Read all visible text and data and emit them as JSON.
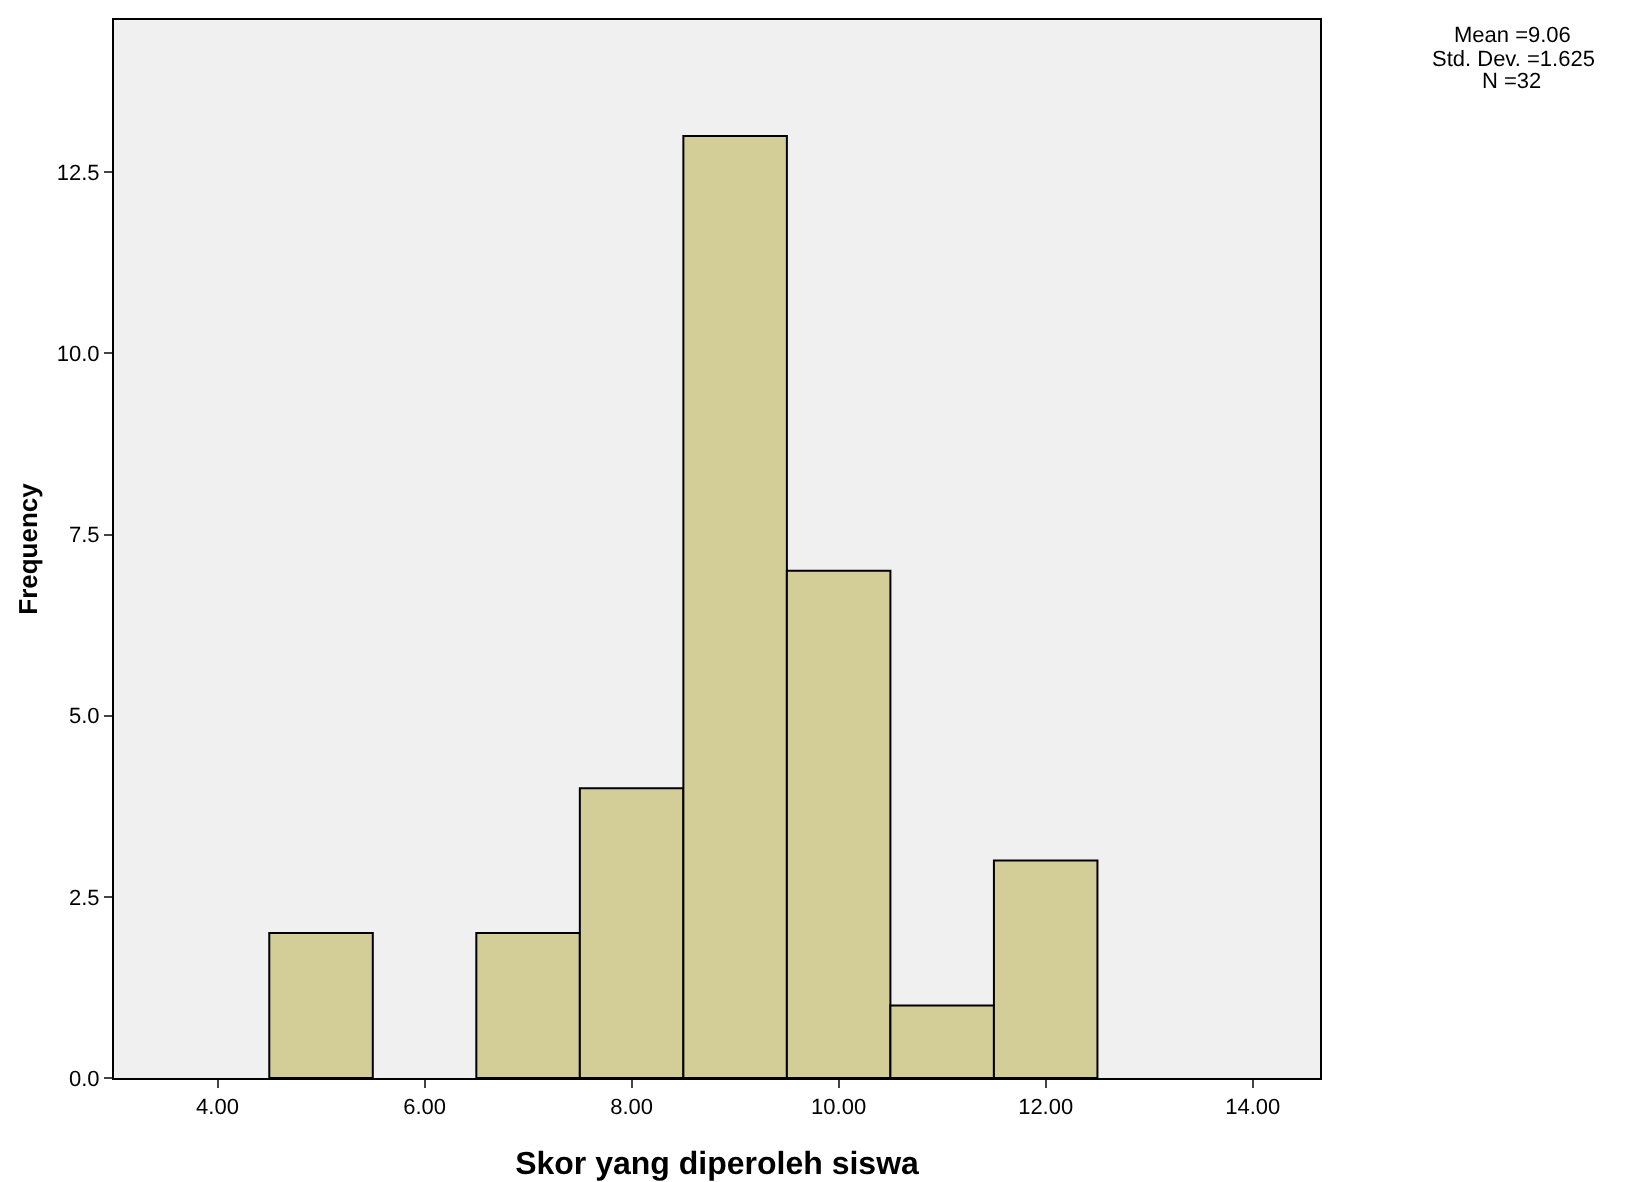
{
  "chart_data": {
    "type": "histogram",
    "xlabel": "Skor yang diperoleh siswa",
    "ylabel": "Frequency",
    "bins": [
      4.5,
      5.5,
      6.5,
      7.5,
      8.5,
      9.5,
      10.5,
      11.5,
      12.5
    ],
    "values": [
      2,
      0,
      2,
      4,
      13,
      7,
      1,
      3
    ],
    "color": "#d3ce97",
    "xlim": [
      3,
      14.65
    ],
    "xticks": [
      {
        "value": 4,
        "label": "4.00"
      },
      {
        "value": 6,
        "label": "6.00"
      },
      {
        "value": 8,
        "label": "8.00"
      },
      {
        "value": 10,
        "label": "10.00"
      },
      {
        "value": 12,
        "label": "12.00"
      },
      {
        "value": 14,
        "label": "14.00"
      }
    ],
    "ylim": [
      0,
      14.6
    ],
    "yticks": [
      {
        "value": 0,
        "label": "0.0"
      },
      {
        "value": 2.5,
        "label": "2.5"
      },
      {
        "value": 5,
        "label": "5.0"
      },
      {
        "value": 7.5,
        "label": "7.5"
      },
      {
        "value": 10,
        "label": "10.0"
      },
      {
        "value": 12.5,
        "label": "12.5"
      }
    ],
    "annotations": [
      "Mean =9.06",
      "Std. Dev. =1.625",
      "N =32"
    ],
    "grid": false,
    "legend": false
  }
}
